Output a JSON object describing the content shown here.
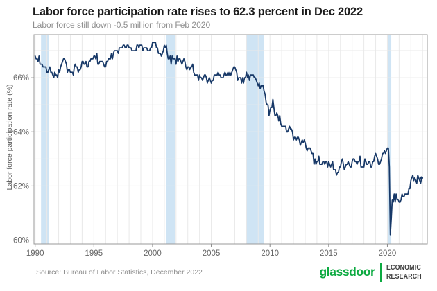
{
  "header": {
    "title": "Labor force participation rate rises to 62.3 percent in Dec 2022",
    "subtitle": "Labor force still down -0.5 million from Feb 2020"
  },
  "footer": {
    "source": "Source: Bureau of Labor Statistics, December 2022",
    "brand": "glassdoor",
    "brand_unit_line1": "ECONOMIC",
    "brand_unit_line2": "RESEARCH",
    "brand_color": "#0caa41"
  },
  "chart_data": {
    "type": "line",
    "title": "Labor force participation rate rises to 62.3 percent in Dec 2022",
    "subtitle": "Labor force still down -0.5 million from Feb 2020",
    "xlabel": "",
    "ylabel": "Labor force participation rate (%)",
    "x_ticks": [
      1990,
      1995,
      2000,
      2005,
      2010,
      2015,
      2020
    ],
    "y_ticks": [
      60,
      62,
      64,
      66
    ],
    "y_tick_suffix": "%",
    "xlim": [
      1989.9,
      2023.4
    ],
    "ylim": [
      59.86,
      67.59
    ],
    "grid": true,
    "grid_x_every_years": 1,
    "grid_y_every_pct": 1,
    "legend": "none",
    "line_color": "#183968",
    "grid_color": "#e9e9e9",
    "panel_border_color": "#999999",
    "tick_text_color": "#666666",
    "recession_band_color": "#cfe4f4",
    "recessions": [
      [
        1990.5,
        1991.17
      ],
      [
        2001.17,
        2001.92
      ],
      [
        2007.92,
        2009.5
      ],
      [
        2020.08,
        2020.33
      ]
    ],
    "series": [
      {
        "name": "Labor force participation rate (%)",
        "x_start_year": 1990.0,
        "x_step_years": 0.0833333,
        "values": [
          66.8,
          66.7,
          66.7,
          66.6,
          66.8,
          66.5,
          66.5,
          66.5,
          66.4,
          66.4,
          66.4,
          66.4,
          66.2,
          66.2,
          66.3,
          66.4,
          66.2,
          66.2,
          66.1,
          66.0,
          66.2,
          66.1,
          66.1,
          66.0,
          66.3,
          66.2,
          66.4,
          66.5,
          66.6,
          66.7,
          66.7,
          66.6,
          66.5,
          66.2,
          66.3,
          66.3,
          66.2,
          66.2,
          66.2,
          66.1,
          66.4,
          66.5,
          66.4,
          66.4,
          66.2,
          66.3,
          66.3,
          66.4,
          66.6,
          66.6,
          66.5,
          66.5,
          66.6,
          66.4,
          66.4,
          66.6,
          66.6,
          66.7,
          66.7,
          66.7,
          66.8,
          66.8,
          66.7,
          66.9,
          66.5,
          66.5,
          66.6,
          66.6,
          66.6,
          66.6,
          66.5,
          66.4,
          66.4,
          66.6,
          66.6,
          66.7,
          66.7,
          66.7,
          66.9,
          66.7,
          66.9,
          67.0,
          67.0,
          67.0,
          67.0,
          66.9,
          67.1,
          67.1,
          67.1,
          67.1,
          67.2,
          67.2,
          67.1,
          67.1,
          67.2,
          67.2,
          67.1,
          67.1,
          67.1,
          67.0,
          67.0,
          67.0,
          67.0,
          67.0,
          67.2,
          67.2,
          67.1,
          67.2,
          67.2,
          67.2,
          67.0,
          67.1,
          67.1,
          67.1,
          67.1,
          67.0,
          67.0,
          67.0,
          67.1,
          67.1,
          67.3,
          67.3,
          67.3,
          67.3,
          67.1,
          67.1,
          66.9,
          66.9,
          66.9,
          66.8,
          66.9,
          67.0,
          67.2,
          67.1,
          67.2,
          66.9,
          66.7,
          66.7,
          66.8,
          66.5,
          66.8,
          66.7,
          66.7,
          66.7,
          66.5,
          66.8,
          66.6,
          66.7,
          66.7,
          66.6,
          66.5,
          66.6,
          66.7,
          66.6,
          66.4,
          66.3,
          66.4,
          66.4,
          66.3,
          66.4,
          66.4,
          66.5,
          66.2,
          66.1,
          66.1,
          66.1,
          66.1,
          65.9,
          66.1,
          66.0,
          66.0,
          65.9,
          66.0,
          66.1,
          66.1,
          66.0,
          65.8,
          65.9,
          66.0,
          65.9,
          65.8,
          65.9,
          65.9,
          66.1,
          66.1,
          66.1,
          66.1,
          66.2,
          66.1,
          66.1,
          66.0,
          66.0,
          66.0,
          66.1,
          66.2,
          66.1,
          66.1,
          66.2,
          66.1,
          66.2,
          66.1,
          66.2,
          66.3,
          66.4,
          66.4,
          66.3,
          66.2,
          65.9,
          66.0,
          66.0,
          66.0,
          65.8,
          66.0,
          65.8,
          66.0,
          66.0,
          66.2,
          66.0,
          66.1,
          65.9,
          66.1,
          66.1,
          66.1,
          66.1,
          66.0,
          66.0,
          65.9,
          65.8,
          65.7,
          65.8,
          65.6,
          65.7,
          65.7,
          65.7,
          65.5,
          65.4,
          65.1,
          65.0,
          65.0,
          64.6,
          64.8,
          64.9,
          64.9,
          65.2,
          64.9,
          64.6,
          64.6,
          64.7,
          64.6,
          64.4,
          64.6,
          64.3,
          64.2,
          64.2,
          64.2,
          64.2,
          64.2,
          64.0,
          64.0,
          64.1,
          64.2,
          64.1,
          64.1,
          64.0,
          63.7,
          63.8,
          63.8,
          63.7,
          63.8,
          63.8,
          63.7,
          63.5,
          63.6,
          63.7,
          63.6,
          63.7,
          63.6,
          63.4,
          63.3,
          63.4,
          63.4,
          63.4,
          63.3,
          63.2,
          63.2,
          62.8,
          63.0,
          62.8,
          62.9,
          62.9,
          63.1,
          62.8,
          62.8,
          62.8,
          62.9,
          62.9,
          62.8,
          62.9,
          62.9,
          62.7,
          62.9,
          62.8,
          62.7,
          62.8,
          62.9,
          62.6,
          62.6,
          62.6,
          62.4,
          62.5,
          62.5,
          62.7,
          62.7,
          62.9,
          63.0,
          62.8,
          62.6,
          62.7,
          62.8,
          62.8,
          62.9,
          62.8,
          62.7,
          62.7,
          62.9,
          63.0,
          63.0,
          62.9,
          62.9,
          62.8,
          62.9,
          62.9,
          63.1,
          62.7,
          62.7,
          62.7,
          62.7,
          63.0,
          62.9,
          62.8,
          62.8,
          62.9,
          62.9,
          62.7,
          62.7,
          62.9,
          62.9,
          63.1,
          63.2,
          63.1,
          63.0,
          62.8,
          62.8,
          62.9,
          63.0,
          63.2,
          63.2,
          63.3,
          63.2,
          63.3,
          63.4,
          63.4,
          62.7,
          60.2,
          60.8,
          61.5,
          61.4,
          61.7,
          61.4,
          61.7,
          61.5,
          61.5,
          61.4,
          61.4,
          61.5,
          61.7,
          61.6,
          61.6,
          61.7,
          61.7,
          61.7,
          61.7,
          61.9,
          61.9,
          62.2,
          62.3,
          62.4,
          62.2,
          62.3,
          62.2,
          62.1,
          62.4,
          62.3,
          62.2,
          62.1,
          62.3
        ]
      }
    ],
    "end_point": {
      "x": 2022.917,
      "y": 62.3
    }
  }
}
